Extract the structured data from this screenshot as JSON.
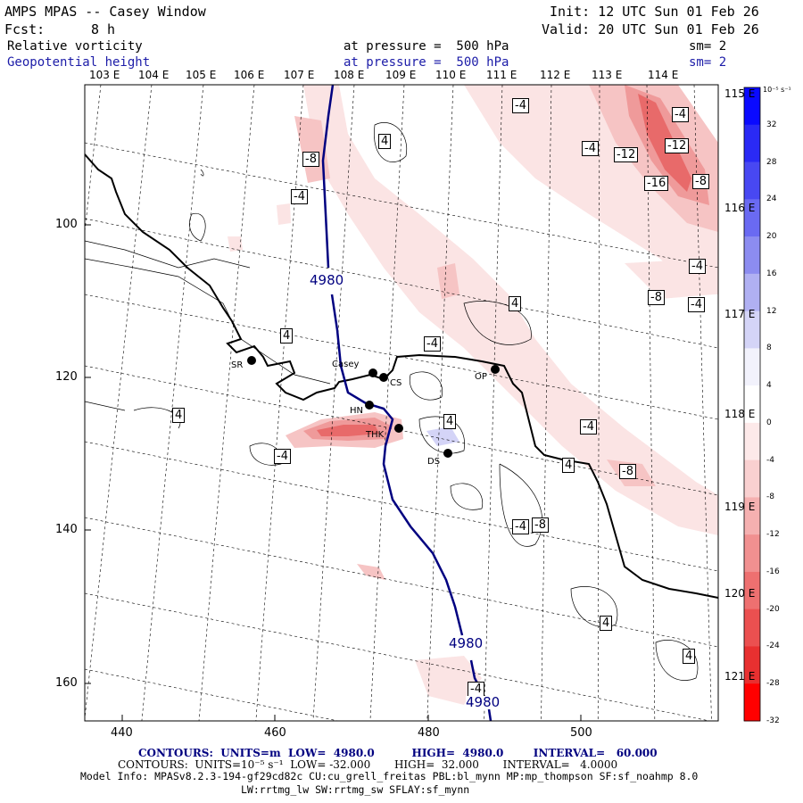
{
  "header": {
    "model": "AMPS MPAS -- Casey Window",
    "init": "Init: 12 UTC Sun 01 Feb 26",
    "fcst_label": "Fcst:",
    "fcst_value": "8 h",
    "valid": "Valid: 20 UTC Sun 01 Feb 26",
    "field1": "Relative vorticity",
    "field1_level": "at pressure =  500 hPa",
    "field1_sm": "sm= 2",
    "field2": "Geopotential height",
    "field2_level": "at pressure =  500 hPa",
    "field2_sm": "sm= 2"
  },
  "lon_labels": [
    "103 E",
    "104 E",
    "105 E",
    "106 E",
    "107 E",
    "108 E",
    "109 E",
    "110 E",
    "111 E",
    "112 E",
    "113 E",
    "114 E"
  ],
  "lat_edge_labels": [
    "115 E",
    "116 E",
    "117 E",
    "118 E",
    "119 E",
    "120 E",
    "121 E"
  ],
  "axis_y": [
    "100",
    "120",
    "140",
    "160"
  ],
  "axis_x": [
    "440",
    "460",
    "480",
    "500"
  ],
  "stations": [
    {
      "name": "SR"
    },
    {
      "name": "Casey"
    },
    {
      "name": "CS"
    },
    {
      "name": "HN"
    },
    {
      "name": "THK"
    },
    {
      "name": "DS"
    },
    {
      "name": "OP"
    }
  ],
  "contour_labels": [
    "-4",
    "-8",
    "-4",
    "4",
    "-4",
    "-4",
    "-12",
    "-12",
    "-16",
    "-8",
    "-4",
    "-8",
    "-4",
    "-8",
    "4",
    "4",
    "-4",
    "4",
    "4",
    "-4",
    "-4",
    "4",
    "-8",
    "-4",
    "4",
    "4",
    "-4"
  ],
  "height_labels": [
    "4980",
    "4980",
    "4980"
  ],
  "colorbar": {
    "unit": "10⁻⁵ s⁻¹",
    "ticks": [
      "32",
      "28",
      "24",
      "20",
      "16",
      "12",
      "8",
      "4",
      "0",
      "-4",
      "-8",
      "-12",
      "-16",
      "-20",
      "-24",
      "-28",
      "-32"
    ],
    "colors": [
      "#0a0aff",
      "#2a2af5",
      "#4848f2",
      "#6a6af2",
      "#8c8cf0",
      "#b0b0f2",
      "#d4d4f7",
      "#f2f2fc",
      "#ffffff",
      "#fde9e9",
      "#f9d0d0",
      "#f5b0b0",
      "#f19090",
      "#ee7070",
      "#eb5050",
      "#e83030",
      "#ff0000"
    ]
  },
  "footer": {
    "contours1": "CONTOURS:  UNITS=m  LOW=  4980.0          HIGH=  4980.0        INTERVAL=   60.000",
    "contours2": "CONTOURS:  UNITS=10⁻⁵ s⁻¹  LOW= -32.000       HIGH=  32.000       INTERVAL=   4.0000",
    "info1": "Model Info: MPASv8.2.3-194-gf29cd82c CU:cu_grell_freitas PBL:bl_mynn MP:mp_thompson SF:sf_noahmp 8.0",
    "info2": "LW:rrtmg_lw SW:rrtmg_sw SFLAY:sf_mynn"
  }
}
